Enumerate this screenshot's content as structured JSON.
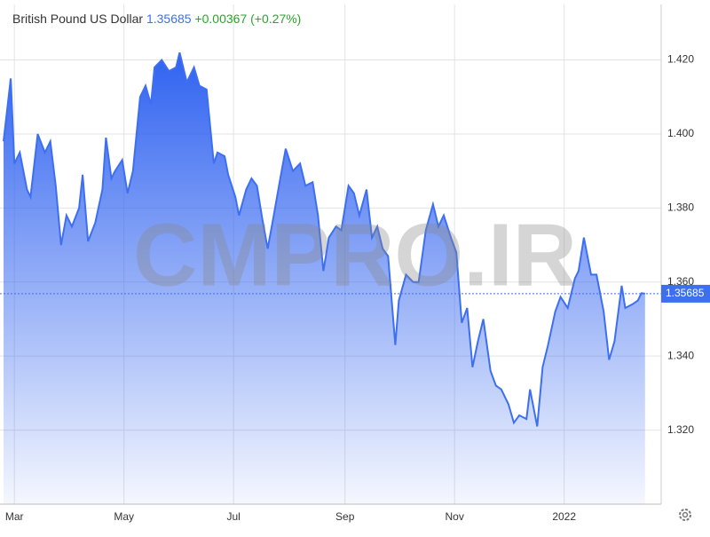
{
  "header": {
    "title": "British Pound US Dollar",
    "price": "1.35685",
    "change": "+0.00367",
    "change_pct": "(+0.27%)"
  },
  "watermark": "CMPRO.IR",
  "chart_data": {
    "type": "area",
    "color": "#3d6ff0",
    "grid": true,
    "x": [
      0,
      4,
      6,
      9,
      13,
      15,
      19,
      23,
      26,
      29,
      32,
      35,
      38,
      42,
      44,
      47,
      51,
      55,
      57,
      60,
      62,
      66,
      69,
      72,
      76,
      79,
      82,
      84,
      88,
      92,
      96,
      98,
      102,
      106,
      109,
      113,
      117,
      119,
      123,
      125,
      129,
      131,
      135,
      138,
      141,
      144,
      147,
      150,
      154,
      157,
      161,
      165,
      168,
      172,
      175,
      178,
      181,
      185,
      188,
      192,
      195,
      198,
      202,
      205,
      208,
      211,
      214,
      218,
      220,
      224,
      228,
      231,
      235,
      239,
      242,
      245,
      249,
      252,
      255,
      258,
      261,
      264,
      267,
      271,
      274,
      277,
      281,
      284,
      287,
      291,
      293,
      297,
      300,
      303,
      307,
      310,
      314,
      318,
      320,
      323,
      327,
      330,
      334,
      337,
      340,
      344,
      346,
      350,
      353,
      355,
      357
    ],
    "values": [
      1.398,
      1.415,
      1.392,
      1.395,
      1.385,
      1.383,
      1.4,
      1.395,
      1.398,
      1.386,
      1.37,
      1.378,
      1.375,
      1.38,
      1.389,
      1.371,
      1.376,
      1.385,
      1.399,
      1.388,
      1.39,
      1.393,
      1.384,
      1.39,
      1.41,
      1.413,
      1.408,
      1.418,
      1.42,
      1.417,
      1.418,
      1.422,
      1.414,
      1.418,
      1.413,
      1.412,
      1.392,
      1.395,
      1.394,
      1.389,
      1.383,
      1.378,
      1.385,
      1.388,
      1.386,
      1.377,
      1.369,
      1.377,
      1.388,
      1.396,
      1.39,
      1.392,
      1.386,
      1.387,
      1.378,
      1.363,
      1.372,
      1.375,
      1.374,
      1.386,
      1.384,
      1.378,
      1.385,
      1.372,
      1.375,
      1.369,
      1.367,
      1.343,
      1.355,
      1.362,
      1.36,
      1.36,
      1.374,
      1.381,
      1.375,
      1.378,
      1.372,
      1.368,
      1.349,
      1.353,
      1.337,
      1.344,
      1.35,
      1.336,
      1.332,
      1.331,
      1.327,
      1.322,
      1.324,
      1.323,
      1.331,
      1.321,
      1.337,
      1.343,
      1.352,
      1.356,
      1.353,
      1.361,
      1.363,
      1.372,
      1.362,
      1.362,
      1.352,
      1.339,
      1.344,
      1.359,
      1.353,
      1.354,
      1.355,
      1.357,
      1.35685
    ],
    "xlim": [
      -2,
      366
    ],
    "ylim": [
      1.3,
      1.435
    ],
    "xticks": [
      {
        "value": 6,
        "label": "Mar"
      },
      {
        "value": 67,
        "label": "May"
      },
      {
        "value": 128,
        "label": "Jul"
      },
      {
        "value": 190,
        "label": "Sep"
      },
      {
        "value": 251,
        "label": "Nov"
      },
      {
        "value": 312,
        "label": "2022"
      }
    ],
    "yticks": [
      {
        "value": 1.32,
        "label": "1.320"
      },
      {
        "value": 1.34,
        "label": "1.340"
      },
      {
        "value": 1.36,
        "label": "1.360"
      },
      {
        "value": 1.38,
        "label": "1.380"
      },
      {
        "value": 1.4,
        "label": "1.400"
      },
      {
        "value": 1.42,
        "label": "1.420"
      }
    ]
  }
}
